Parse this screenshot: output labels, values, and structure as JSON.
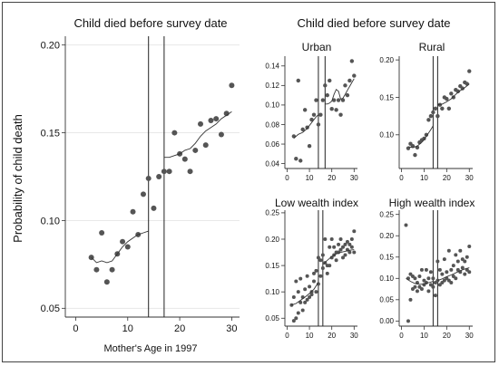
{
  "chart_data": [
    {
      "type": "scatter",
      "title": "Child died before survey date",
      "xlabel": "Mother's Age in 1997",
      "ylabel": "Probability of child death",
      "xlim": [
        -2,
        31.5
      ],
      "ylim": [
        0.045,
        0.205
      ],
      "xticks": [
        "0",
        "10",
        "20",
        "30"
      ],
      "yticks": [
        "0.05",
        "0.10",
        "0.15",
        "0.20"
      ],
      "grid": "horizontal",
      "vlines": [
        14,
        17
      ],
      "points": {
        "x": [
          3,
          4,
          5,
          6,
          7,
          8,
          9,
          10,
          11,
          12,
          13,
          14,
          15,
          16,
          17,
          18,
          19,
          20,
          21,
          22,
          23,
          24,
          25,
          26,
          27,
          28,
          29,
          30
        ],
        "y": [
          0.079,
          0.072,
          0.093,
          0.065,
          0.072,
          0.081,
          0.088,
          0.085,
          0.105,
          0.092,
          0.115,
          0.124,
          0.107,
          0.125,
          0.128,
          0.128,
          0.15,
          0.138,
          0.135,
          0.128,
          0.14,
          0.155,
          0.143,
          0.157,
          0.158,
          0.149,
          0.161,
          0.177
        ]
      },
      "fit": [
        {
          "x": [
            3,
            4,
            5,
            6,
            7,
            8,
            9,
            10,
            11,
            12,
            13,
            14
          ],
          "y": [
            0.079,
            0.076,
            0.077,
            0.076,
            0.077,
            0.081,
            0.085,
            0.088,
            0.09,
            0.092,
            0.093,
            0.094
          ]
        },
        {
          "x": [
            17,
            18,
            19,
            20,
            21,
            22,
            23,
            24,
            25,
            26,
            27,
            28,
            29,
            30
          ],
          "y": [
            0.136,
            0.136,
            0.137,
            0.138,
            0.14,
            0.141,
            0.144,
            0.148,
            0.151,
            0.153,
            0.155,
            0.158,
            0.16,
            0.162
          ]
        }
      ]
    },
    {
      "type": "scatter",
      "title": "Urban",
      "xlim": [
        -1,
        31.5
      ],
      "ylim": [
        0.035,
        0.15
      ],
      "xticks": [
        "0",
        "10",
        "20",
        "30"
      ],
      "yticks": [
        "0.04",
        "0.06",
        "0.08",
        "0.10",
        "0.12",
        "0.14"
      ],
      "vlines": [
        14,
        17
      ],
      "points": {
        "x": [
          3,
          4,
          5,
          6,
          7,
          8,
          9,
          10,
          11,
          12,
          13,
          14,
          15,
          16,
          17,
          18,
          19,
          20,
          21,
          22,
          23,
          24,
          25,
          26,
          27,
          28,
          29,
          30
        ],
        "y": [
          0.068,
          0.045,
          0.125,
          0.043,
          0.075,
          0.095,
          0.077,
          0.058,
          0.085,
          0.09,
          0.105,
          0.08,
          0.09,
          0.105,
          0.12,
          0.11,
          0.125,
          0.096,
          0.105,
          0.095,
          0.105,
          0.09,
          0.105,
          0.12,
          0.11,
          0.125,
          0.145,
          0.13
        ]
      },
      "fit": [
        {
          "x": [
            3,
            5,
            7,
            9,
            11,
            13,
            14
          ],
          "y": [
            0.066,
            0.07,
            0.072,
            0.076,
            0.082,
            0.088,
            0.09
          ]
        },
        {
          "x": [
            17,
            18,
            19,
            20,
            21,
            22,
            23,
            24,
            25,
            26,
            27,
            28,
            29,
            30
          ],
          "y": [
            0.101,
            0.101,
            0.102,
            0.104,
            0.111,
            0.116,
            0.114,
            0.106,
            0.107,
            0.111,
            0.115,
            0.119,
            0.123,
            0.127
          ]
        }
      ]
    },
    {
      "type": "scatter",
      "title": "Rural",
      "xlim": [
        -1,
        31.5
      ],
      "ylim": [
        0.055,
        0.205
      ],
      "xticks": [
        "0",
        "10",
        "20",
        "30"
      ],
      "yticks": [
        "0.10",
        "0.15",
        "0.20"
      ],
      "vlines": [
        14,
        16
      ],
      "points": {
        "x": [
          3,
          4,
          5,
          6,
          7,
          8,
          9,
          10,
          11,
          12,
          13,
          14,
          15,
          16,
          17,
          18,
          19,
          20,
          21,
          22,
          23,
          24,
          25,
          26,
          27,
          28,
          29,
          30
        ],
        "y": [
          0.082,
          0.088,
          0.085,
          0.073,
          0.083,
          0.09,
          0.093,
          0.095,
          0.1,
          0.12,
          0.125,
          0.13,
          0.135,
          0.125,
          0.14,
          0.135,
          0.15,
          0.148,
          0.135,
          0.155,
          0.15,
          0.16,
          0.158,
          0.165,
          0.162,
          0.17,
          0.168,
          0.185
        ]
      },
      "fit": [
        {
          "x": [
            3,
            5,
            7,
            9,
            11,
            13,
            14
          ],
          "y": [
            0.084,
            0.083,
            0.085,
            0.09,
            0.098,
            0.107,
            0.112
          ]
        },
        {
          "x": [
            16,
            18,
            20,
            22,
            24,
            26,
            28,
            30
          ],
          "y": [
            0.14,
            0.141,
            0.144,
            0.148,
            0.154,
            0.159,
            0.163,
            0.168
          ]
        }
      ]
    },
    {
      "type": "scatter",
      "title": "Low wealth index",
      "xlim": [
        -1,
        31.5
      ],
      "ylim": [
        0.035,
        0.255
      ],
      "xticks": [
        "0",
        "10",
        "20",
        "30"
      ],
      "yticks": [
        "0.05",
        "0.10",
        "0.15",
        "0.20",
        "0.25"
      ],
      "vlines": [
        14,
        16
      ],
      "points": {
        "x": [
          2,
          3,
          3,
          4,
          4,
          5,
          5,
          6,
          6,
          7,
          7,
          8,
          8,
          9,
          9,
          10,
          10,
          11,
          11,
          12,
          12,
          13,
          13,
          14,
          14,
          15,
          15,
          16,
          16,
          17,
          17,
          18,
          18,
          19,
          19,
          20,
          20,
          21,
          21,
          22,
          22,
          23,
          23,
          24,
          24,
          25,
          25,
          26,
          26,
          27,
          27,
          28,
          28,
          29,
          29,
          30,
          30
        ],
        "y": [
          0.075,
          0.045,
          0.09,
          0.05,
          0.12,
          0.06,
          0.1,
          0.08,
          0.125,
          0.065,
          0.09,
          0.08,
          0.105,
          0.085,
          0.13,
          0.09,
          0.11,
          0.095,
          0.1,
          0.12,
          0.135,
          0.1,
          0.14,
          0.115,
          0.165,
          0.13,
          0.16,
          0.145,
          0.17,
          0.155,
          0.2,
          0.135,
          0.15,
          0.15,
          0.185,
          0.165,
          0.2,
          0.17,
          0.185,
          0.16,
          0.175,
          0.175,
          0.19,
          0.18,
          0.2,
          0.165,
          0.185,
          0.17,
          0.19,
          0.18,
          0.195,
          0.175,
          0.19,
          0.185,
          0.2,
          0.175,
          0.215
        ]
      },
      "fit": [
        {
          "x": [
            2,
            4,
            6,
            8,
            10,
            12,
            14
          ],
          "y": [
            0.075,
            0.078,
            0.084,
            0.09,
            0.097,
            0.105,
            0.118
          ]
        },
        {
          "x": [
            16,
            18,
            20,
            22,
            24,
            26,
            28,
            30
          ],
          "y": [
            0.152,
            0.16,
            0.167,
            0.172,
            0.175,
            0.177,
            0.179,
            0.18
          ]
        }
      ]
    },
    {
      "type": "scatter",
      "title": "High wealth index",
      "xlim": [
        -1,
        31.5
      ],
      "ylim": [
        -0.012,
        0.26
      ],
      "xticks": [
        "0",
        "10",
        "20",
        "30"
      ],
      "yticks": [
        "0.00",
        "0.05",
        "0.10",
        "0.15",
        "0.20",
        "0.25"
      ],
      "vlines": [
        14,
        16
      ],
      "points": {
        "x": [
          2,
          3,
          3,
          4,
          4,
          5,
          5,
          6,
          6,
          7,
          7,
          8,
          8,
          9,
          9,
          10,
          10,
          11,
          11,
          12,
          12,
          13,
          13,
          14,
          14,
          15,
          15,
          16,
          16,
          17,
          17,
          18,
          18,
          19,
          19,
          20,
          20,
          21,
          21,
          22,
          22,
          23,
          23,
          24,
          24,
          25,
          25,
          26,
          26,
          27,
          27,
          28,
          28,
          29,
          29,
          30,
          30
        ],
        "y": [
          0.225,
          0.0,
          0.1,
          0.05,
          0.11,
          0.075,
          0.105,
          0.08,
          0.1,
          0.07,
          0.09,
          0.08,
          0.105,
          0.075,
          0.12,
          0.085,
          0.095,
          0.09,
          0.12,
          0.07,
          0.1,
          0.085,
          0.115,
          0.08,
          0.1,
          0.06,
          0.09,
          0.095,
          0.14,
          0.085,
          0.12,
          0.09,
          0.11,
          0.095,
          0.145,
          0.1,
          0.115,
          0.095,
          0.165,
          0.09,
          0.12,
          0.105,
          0.13,
          0.1,
          0.155,
          0.12,
          0.14,
          0.115,
          0.165,
          0.125,
          0.145,
          0.11,
          0.14,
          0.12,
          0.15,
          0.115,
          0.175
        ]
      },
      "fit": [
        {
          "x": [
            2,
            4,
            6,
            8,
            10,
            12,
            14
          ],
          "y": [
            0.1,
            0.093,
            0.088,
            0.086,
            0.087,
            0.09,
            0.093
          ]
        },
        {
          "x": [
            16,
            18,
            20,
            22,
            24,
            26,
            28,
            30
          ],
          "y": [
            0.095,
            0.099,
            0.104,
            0.108,
            0.113,
            0.118,
            0.122,
            0.125
          ]
        }
      ]
    }
  ],
  "panels_title": "Child died before survey date"
}
